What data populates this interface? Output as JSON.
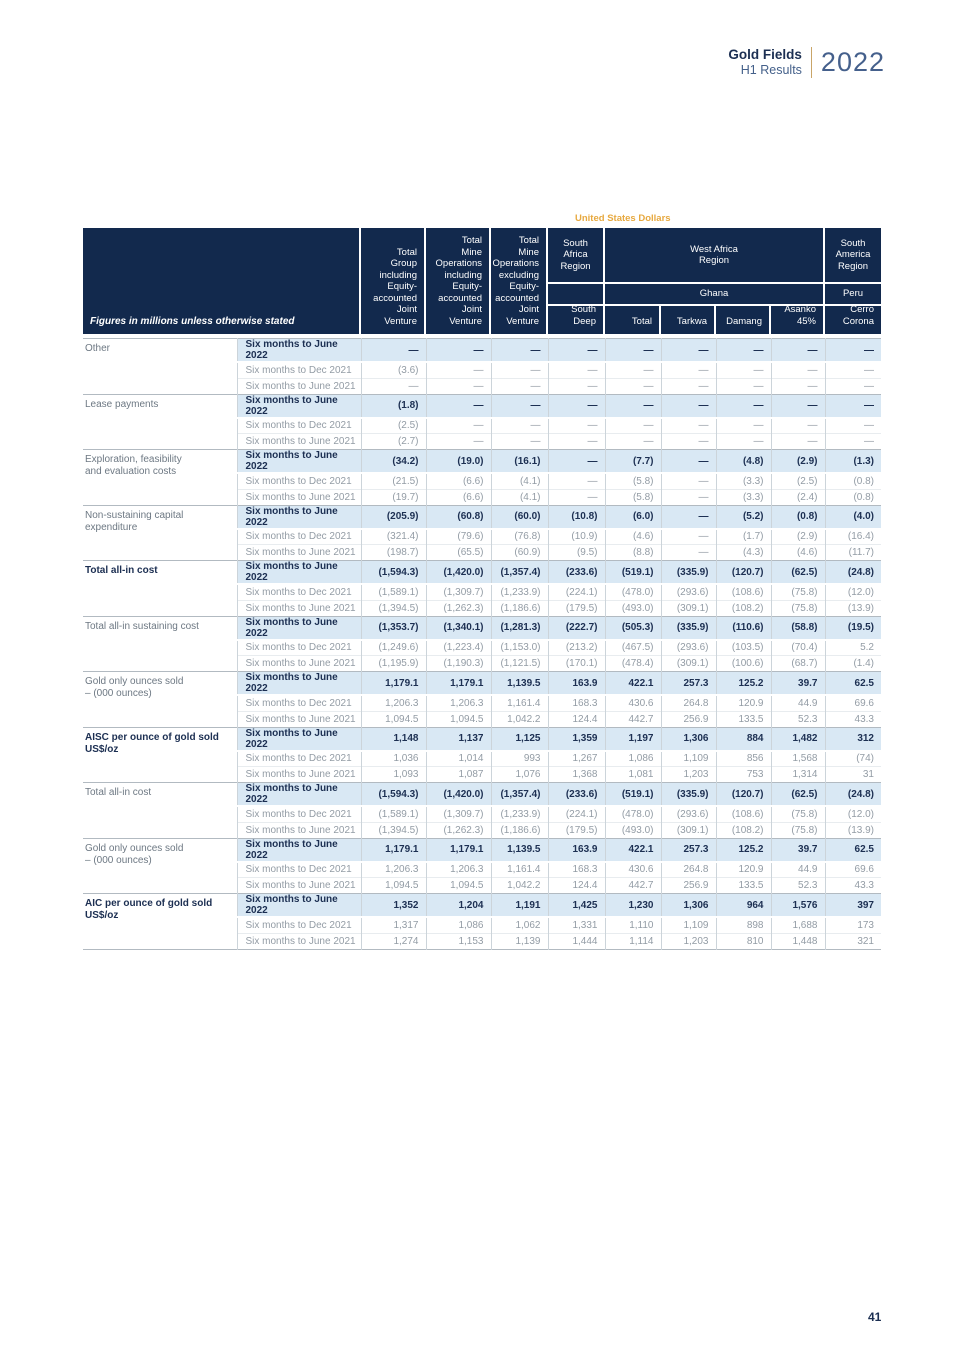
{
  "brand": {
    "line1": "Gold Fields",
    "line2": "H1 Results",
    "year": "2022"
  },
  "page_number": "41",
  "table": {
    "currency_label": "United States Dollars",
    "corner_label": "Figures in millions unless otherwise stated",
    "header": {
      "total_group": "Total\nGroup\nincluding\nEquity-\naccounted\nJoint\nVenture",
      "total_mine_incl": "Total\nMine\nOperations\nincluding\nEquity-\naccounted\nJoint\nVenture",
      "total_mine_excl": "Total\nMine\nOperations\nexcluding\nEquity-\naccounted\nJoint\nVenture",
      "south_africa_region": "South\nAfrica\nRegion",
      "west_africa_region": "West Africa\nRegion",
      "south_america_region": "South\nAmerica\nRegion",
      "ghana": "Ghana",
      "peru": "Peru",
      "south_deep": "South\nDeep",
      "total": "Total",
      "tarkwa": "Tarkwa",
      "damang": "Damang",
      "asanko": "Asanko\n45%",
      "cerro_corona": "Cerro\nCorona"
    },
    "periods": [
      "Six months to June 2022",
      "Six months to Dec 2021",
      "Six months to June 2021"
    ],
    "groups": [
      {
        "label": "Other",
        "bold": false,
        "rows": [
          [
            "—",
            "—",
            "—",
            "—",
            "—",
            "—",
            "—",
            "—",
            "—"
          ],
          [
            "(3.6)",
            "—",
            "—",
            "—",
            "—",
            "—",
            "—",
            "—",
            "—"
          ],
          [
            "—",
            "—",
            "—",
            "—",
            "—",
            "—",
            "—",
            "—",
            "—"
          ]
        ]
      },
      {
        "label": "Lease payments",
        "bold": false,
        "rows": [
          [
            "(1.8)",
            "—",
            "—",
            "—",
            "—",
            "—",
            "—",
            "—",
            "—"
          ],
          [
            "(2.5)",
            "—",
            "—",
            "—",
            "—",
            "—",
            "—",
            "—",
            "—"
          ],
          [
            "(2.7)",
            "—",
            "—",
            "—",
            "—",
            "—",
            "—",
            "—",
            "—"
          ]
        ]
      },
      {
        "label": "Exploration, feasibility\nand evaluation costs",
        "bold": false,
        "rows": [
          [
            "(34.2)",
            "(19.0)",
            "(16.1)",
            "—",
            "(7.7)",
            "—",
            "(4.8)",
            "(2.9)",
            "(1.3)"
          ],
          [
            "(21.5)",
            "(6.6)",
            "(4.1)",
            "—",
            "(5.8)",
            "—",
            "(3.3)",
            "(2.5)",
            "(0.8)"
          ],
          [
            "(19.7)",
            "(6.6)",
            "(4.1)",
            "—",
            "(5.8)",
            "—",
            "(3.3)",
            "(2.4)",
            "(0.8)"
          ]
        ]
      },
      {
        "label": "Non-sustaining capital\nexpenditure",
        "bold": false,
        "rows": [
          [
            "(205.9)",
            "(60.8)",
            "(60.0)",
            "(10.8)",
            "(6.0)",
            "—",
            "(5.2)",
            "(0.8)",
            "(4.0)"
          ],
          [
            "(321.4)",
            "(79.6)",
            "(76.8)",
            "(10.9)",
            "(4.6)",
            "—",
            "(1.7)",
            "(2.9)",
            "(16.4)"
          ],
          [
            "(198.7)",
            "(65.5)",
            "(60.9)",
            "(9.5)",
            "(8.8)",
            "—",
            "(4.3)",
            "(4.6)",
            "(11.7)"
          ]
        ]
      },
      {
        "label": "Total all-in cost",
        "bold": true,
        "rows": [
          [
            "(1,594.3)",
            "(1,420.0)",
            "(1,357.4)",
            "(233.6)",
            "(519.1)",
            "(335.9)",
            "(120.7)",
            "(62.5)",
            "(24.8)"
          ],
          [
            "(1,589.1)",
            "(1,309.7)",
            "(1,233.9)",
            "(224.1)",
            "(478.0)",
            "(293.6)",
            "(108.6)",
            "(75.8)",
            "(12.0)"
          ],
          [
            "(1,394.5)",
            "(1,262.3)",
            "(1,186.6)",
            "(179.5)",
            "(493.0)",
            "(309.1)",
            "(108.2)",
            "(75.8)",
            "(13.9)"
          ]
        ]
      },
      {
        "label": "Total all-in sustaining cost",
        "bold": false,
        "rows": [
          [
            "(1,353.7)",
            "(1,340.1)",
            "(1,281.3)",
            "(222.7)",
            "(505.3)",
            "(335.9)",
            "(110.6)",
            "(58.8)",
            "(19.5)"
          ],
          [
            "(1,249.6)",
            "(1,223.4)",
            "(1,153.0)",
            "(213.2)",
            "(467.5)",
            "(293.6)",
            "(103.5)",
            "(70.4)",
            "5.2"
          ],
          [
            "(1,195.9)",
            "(1,190.3)",
            "(1,121.5)",
            "(170.1)",
            "(478.4)",
            "(309.1)",
            "(100.6)",
            "(68.7)",
            "(1.4)"
          ]
        ]
      },
      {
        "label": "Gold only ounces sold\n– (000 ounces)",
        "bold": false,
        "rows": [
          [
            "1,179.1",
            "1,179.1",
            "1,139.5",
            "163.9",
            "422.1",
            "257.3",
            "125.2",
            "39.7",
            "62.5"
          ],
          [
            "1,206.3",
            "1,206.3",
            "1,161.4",
            "168.3",
            "430.6",
            "264.8",
            "120.9",
            "44.9",
            "69.6"
          ],
          [
            "1,094.5",
            "1,094.5",
            "1,042.2",
            "124.4",
            "442.7",
            "256.9",
            "133.5",
            "52.3",
            "43.3"
          ]
        ]
      },
      {
        "label": "AISC per ounce of gold sold\nUS$/oz",
        "bold": true,
        "rows": [
          [
            "1,148",
            "1,137",
            "1,125",
            "1,359",
            "1,197",
            "1,306",
            "884",
            "1,482",
            "312"
          ],
          [
            "1,036",
            "1,014",
            "993",
            "1,267",
            "1,086",
            "1,109",
            "856",
            "1,568",
            "(74)"
          ],
          [
            "1,093",
            "1,087",
            "1,076",
            "1,368",
            "1,081",
            "1,203",
            "753",
            "1,314",
            "31"
          ]
        ]
      },
      {
        "label": "Total all-in cost",
        "bold": false,
        "rows": [
          [
            "(1,594.3)",
            "(1,420.0)",
            "(1,357.4)",
            "(233.6)",
            "(519.1)",
            "(335.9)",
            "(120.7)",
            "(62.5)",
            "(24.8)"
          ],
          [
            "(1,589.1)",
            "(1,309.7)",
            "(1,233.9)",
            "(224.1)",
            "(478.0)",
            "(293.6)",
            "(108.6)",
            "(75.8)",
            "(12.0)"
          ],
          [
            "(1,394.5)",
            "(1,262.3)",
            "(1,186.6)",
            "(179.5)",
            "(493.0)",
            "(309.1)",
            "(108.2)",
            "(75.8)",
            "(13.9)"
          ]
        ]
      },
      {
        "label": "Gold only ounces sold\n– (000 ounces)",
        "bold": false,
        "rows": [
          [
            "1,179.1",
            "1,179.1",
            "1,139.5",
            "163.9",
            "422.1",
            "257.3",
            "125.2",
            "39.7",
            "62.5"
          ],
          [
            "1,206.3",
            "1,206.3",
            "1,161.4",
            "168.3",
            "430.6",
            "264.8",
            "120.9",
            "44.9",
            "69.6"
          ],
          [
            "1,094.5",
            "1,094.5",
            "1,042.2",
            "124.4",
            "442.7",
            "256.9",
            "133.5",
            "52.3",
            "43.3"
          ]
        ]
      },
      {
        "label": "AIC per ounce of gold sold\nUS$/oz",
        "bold": true,
        "rows": [
          [
            "1,352",
            "1,204",
            "1,191",
            "1,425",
            "1,230",
            "1,306",
            "964",
            "1,576",
            "397"
          ],
          [
            "1,317",
            "1,086",
            "1,062",
            "1,331",
            "1,110",
            "1,109",
            "898",
            "1,688",
            "173"
          ],
          [
            "1,274",
            "1,153",
            "1,139",
            "1,444",
            "1,114",
            "1,203",
            "810",
            "1,448",
            "321"
          ]
        ]
      }
    ]
  }
}
